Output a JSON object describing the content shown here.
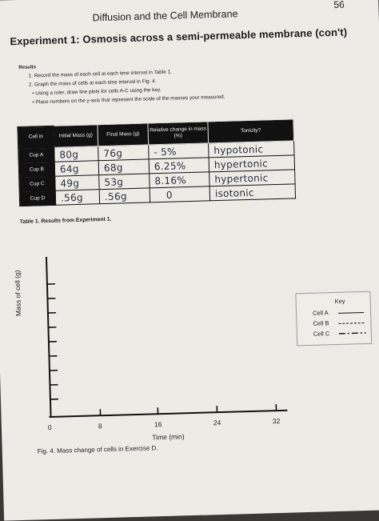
{
  "page_number": "56",
  "header": "Diffusion and the Cell Membrane",
  "experiment_title": "Experiment 1: Osmosis across a semi-permeable membrane (con't)",
  "results_heading": "Results",
  "instructions": [
    "1.   Record the mass of each cell at each time interval in Table 1.",
    "2.   Graph the mass of cells at each time interval in Fig. 4.",
    "•    Using a ruler, draw line plots for cells A-C using the key.",
    "•    Place numbers on the y-axis that represent the scale of the masses your measured."
  ],
  "table": {
    "headers": [
      "Cell in",
      "Initial Mass (g)",
      "Final Mass (g)",
      "Relative change in mass (%)",
      "Tonicity?"
    ],
    "rows": [
      {
        "cell": "Cup A",
        "initial": "80g",
        "final": "76g",
        "change": "- 5%",
        "tonicity": "hypotonic"
      },
      {
        "cell": "Cup B",
        "initial": "64g",
        "final": "68g",
        "change": "6.25%",
        "tonicity": "hypertonic"
      },
      {
        "cell": "Cup C",
        "initial": "49g",
        "final": "53g",
        "change": "8.16%",
        "tonicity": "hypertonic"
      },
      {
        "cell": "Cup D",
        "initial": ".56g",
        "final": ".56g",
        "change": "0",
        "tonicity": "isotonic"
      }
    ],
    "caption": "Table 1. Results from Experiment 1."
  },
  "figure": {
    "ylabel": "Mass of cell (g)",
    "xlabel": "Time (min)",
    "x_ticks": [
      "0",
      "8",
      "16",
      "24",
      "32"
    ],
    "caption": "Fig. 4. Mass change of cells in Exercise D.",
    "key": {
      "title": "Key",
      "entries": [
        {
          "label": "Cell A",
          "style": "solid"
        },
        {
          "label": "Cell B",
          "style": "dashed"
        },
        {
          "label": "Cell C",
          "style": "dash-dot"
        }
      ]
    }
  }
}
